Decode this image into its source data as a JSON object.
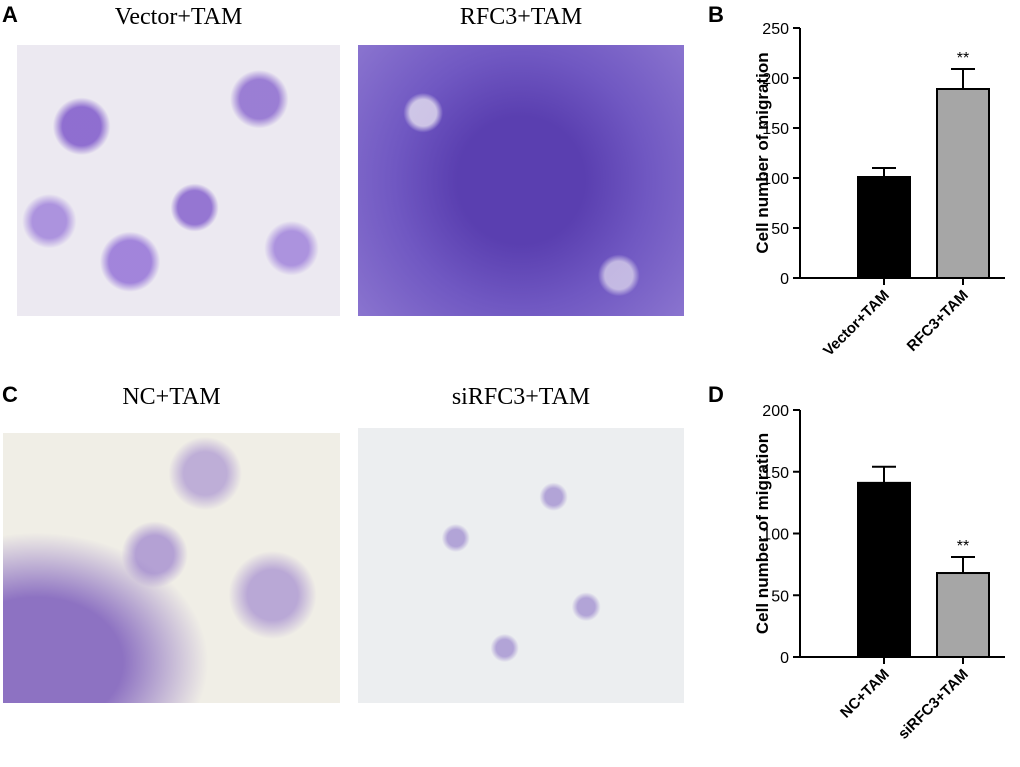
{
  "figure": {
    "rows": [
      {
        "panel": "A",
        "images": [
          "Vector+TAM",
          "RFC3+TAM"
        ]
      },
      {
        "panel": "C",
        "images": [
          "NC+TAM",
          "siRFC3+TAM"
        ]
      }
    ]
  },
  "chart_data": [
    {
      "type": "bar",
      "panel": "B",
      "y_label": "Cell number of migration",
      "categories": [
        "Vector+TAM",
        "RFC3+TAM"
      ],
      "values": [
        101,
        189
      ],
      "errors": [
        9,
        20
      ],
      "colors": [
        "#000000",
        "#a6a6a6"
      ],
      "significance": [
        null,
        "**"
      ],
      "ylim": [
        0,
        250
      ],
      "yticks": [
        0,
        50,
        100,
        150,
        200,
        250
      ]
    },
    {
      "type": "bar",
      "panel": "D",
      "y_label": "Cell number of migration",
      "categories": [
        "NC+TAM",
        "siRFC3+TAM"
      ],
      "values": [
        141,
        68
      ],
      "errors": [
        13,
        13
      ],
      "colors": [
        "#000000",
        "#a6a6a6"
      ],
      "significance": [
        null,
        "**"
      ],
      "ylim": [
        0,
        200
      ],
      "yticks": [
        0,
        50,
        100,
        150,
        200
      ]
    }
  ]
}
